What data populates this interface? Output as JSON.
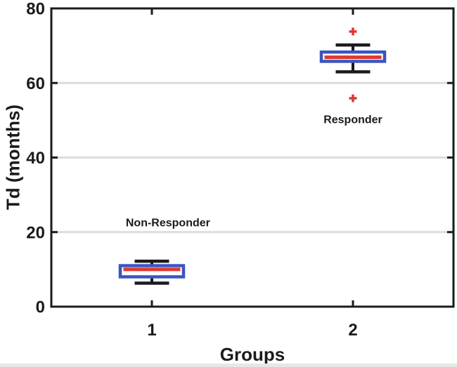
{
  "figure": {
    "background": "#ffffff",
    "bottom_strip_color": "#e7e7e4"
  },
  "chart_data": {
    "type": "boxplot",
    "title": "",
    "xlabel": "Groups",
    "ylabel": "Td (months)",
    "xlim": [
      0.5,
      2.5
    ],
    "ylim": [
      0,
      80
    ],
    "xticks": [
      1,
      2
    ],
    "yticks": [
      0,
      20,
      40,
      60,
      80
    ],
    "grid": "horizontal-gridlines-at-20-40-60",
    "legend_position": "none",
    "colors": {
      "box_edge": "#3b55c0",
      "box_fill": "#ffffff",
      "median": "#dd3931",
      "outlier": "#dd3931",
      "whisker": "#1b1b1b",
      "frame": "#1b1b1b",
      "grid": "#dcdcdc",
      "text": "#1b1b1b"
    },
    "groups": [
      {
        "x": 1,
        "label": "Non-Responder",
        "whisker_low": 6.3,
        "q1": 8.0,
        "median": 10.0,
        "q3": 11.0,
        "whisker_high": 12.2,
        "outliers": []
      },
      {
        "x": 2,
        "label": "Responder",
        "whisker_low": 63.0,
        "q1": 65.8,
        "median": 66.9,
        "q3": 68.3,
        "whisker_high": 70.2,
        "outliers": [
          73.8,
          55.9
        ]
      }
    ],
    "annotations": [
      {
        "text": "Non-Responder",
        "x": 1.08,
        "y": 22.6
      },
      {
        "text": "Responder",
        "x": 2.0,
        "y": 50.3
      }
    ]
  }
}
